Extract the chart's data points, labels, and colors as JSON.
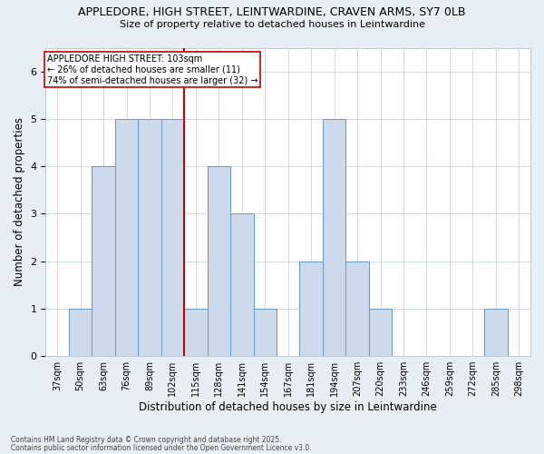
{
  "title_line1": "APPLEDORE, HIGH STREET, LEINTWARDINE, CRAVEN ARMS, SY7 0LB",
  "title_line2": "Size of property relative to detached houses in Leintwardine",
  "xlabel": "Distribution of detached houses by size in Leintwardine",
  "ylabel": "Number of detached properties",
  "categories": [
    "37sqm",
    "50sqm",
    "63sqm",
    "76sqm",
    "89sqm",
    "102sqm",
    "115sqm",
    "128sqm",
    "141sqm",
    "154sqm",
    "167sqm",
    "181sqm",
    "194sqm",
    "207sqm",
    "220sqm",
    "233sqm",
    "246sqm",
    "259sqm",
    "272sqm",
    "285sqm",
    "298sqm"
  ],
  "bar_heights": [
    0,
    1,
    4,
    5,
    5,
    5,
    1,
    4,
    3,
    1,
    0,
    2,
    5,
    2,
    1,
    0,
    0,
    0,
    0,
    1,
    0
  ],
  "bar_color": "#ccdaeb",
  "bar_edge_color": "#6699bb",
  "reference_line_x": 5.5,
  "reference_line_color": "#cc0000",
  "annotation_box_color": "#cc0000",
  "annotation_title": "APPLEDORE HIGH STREET: 103sqm",
  "annotation_line1": "← 26% of detached houses are smaller (11)",
  "annotation_line2": "74% of semi-detached houses are larger (32) →",
  "ylim": [
    0,
    6.5
  ],
  "yticks": [
    0,
    1,
    2,
    3,
    4,
    5,
    6
  ],
  "footer_line1": "Contains HM Land Registry data © Crown copyright and database right 2025.",
  "footer_line2": "Contains public sector information licensed under the Open Government Licence v3.0.",
  "bg_color": "#e8eef5",
  "plot_bg_color": "#ffffff",
  "grid_color": "#c0ccd8"
}
